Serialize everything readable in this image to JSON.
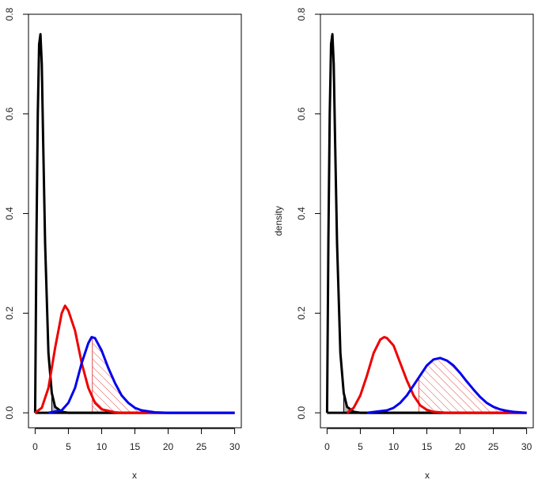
{
  "chart_data": [
    {
      "type": "line",
      "title": "",
      "xlabel": "x",
      "ylabel": "",
      "xlim": [
        -1,
        31
      ],
      "ylim": [
        -0.03,
        0.8
      ],
      "x_ticks": [
        0,
        5,
        10,
        15,
        20,
        25,
        30
      ],
      "x_tick_labels": [
        "0",
        "5",
        "10",
        "15",
        "20",
        "25",
        "30"
      ],
      "y_ticks": [
        0.0,
        0.2,
        0.4,
        0.6,
        0.8
      ],
      "y_tick_labels": [
        "0.0",
        "0.2",
        "0.4",
        "0.6",
        "0.8"
      ],
      "grid": false,
      "series": [
        {
          "color": "#000000",
          "values": [
            [
              0,
              0
            ],
            [
              0.2,
              0.35
            ],
            [
              0.4,
              0.6
            ],
            [
              0.6,
              0.74
            ],
            [
              0.8,
              0.76
            ],
            [
              1.0,
              0.7
            ],
            [
              1.2,
              0.55
            ],
            [
              1.5,
              0.34
            ],
            [
              2.0,
              0.12
            ],
            [
              2.5,
              0.04
            ],
            [
              3.0,
              0.012
            ],
            [
              4.0,
              0.002
            ],
            [
              5,
              0
            ],
            [
              30,
              0
            ]
          ]
        },
        {
          "color": "#ee0000",
          "values": [
            [
              0,
              0
            ],
            [
              1,
              0.01
            ],
            [
              2,
              0.05
            ],
            [
              3,
              0.13
            ],
            [
              4,
              0.2
            ],
            [
              4.5,
              0.215
            ],
            [
              5,
              0.205
            ],
            [
              6,
              0.165
            ],
            [
              7,
              0.1
            ],
            [
              8,
              0.05
            ],
            [
              9,
              0.02
            ],
            [
              10,
              0.007
            ],
            [
              12,
              0.001
            ],
            [
              13,
              0
            ],
            [
              30,
              0
            ]
          ]
        },
        {
          "color": "#0000ee",
          "values": [
            [
              2,
              0
            ],
            [
              4,
              0.005
            ],
            [
              5,
              0.02
            ],
            [
              6,
              0.05
            ],
            [
              7,
              0.1
            ],
            [
              8,
              0.14
            ],
            [
              8.5,
              0.152
            ],
            [
              9,
              0.15
            ],
            [
              10,
              0.125
            ],
            [
              11,
              0.09
            ],
            [
              12,
              0.06
            ],
            [
              13,
              0.035
            ],
            [
              14,
              0.02
            ],
            [
              15,
              0.01
            ],
            [
              16,
              0.005
            ],
            [
              18,
              0.001
            ],
            [
              20,
              0
            ],
            [
              30,
              0
            ]
          ]
        }
      ],
      "shaded": [
        {
          "style": "solid-gray",
          "x_from": 2.5,
          "x_to": 5,
          "curve_index": 0
        },
        {
          "style": "hatched-red",
          "x_from": 8.6,
          "x_to": 20,
          "curve_index": 2
        }
      ]
    },
    {
      "type": "line",
      "title": "",
      "xlabel": "x",
      "ylabel": "density",
      "xlim": [
        -1,
        31
      ],
      "ylim": [
        -0.03,
        0.8
      ],
      "x_ticks": [
        0,
        5,
        10,
        15,
        20,
        25,
        30
      ],
      "x_tick_labels": [
        "0",
        "5",
        "10",
        "15",
        "20",
        "25",
        "30"
      ],
      "y_ticks": [
        0.0,
        0.2,
        0.4,
        0.6,
        0.8
      ],
      "y_tick_labels": [
        "0.0",
        "0.2",
        "0.4",
        "0.6",
        "0.8"
      ],
      "grid": false,
      "series": [
        {
          "color": "#000000",
          "values": [
            [
              0,
              0
            ],
            [
              0.2,
              0.35
            ],
            [
              0.4,
              0.6
            ],
            [
              0.6,
              0.74
            ],
            [
              0.8,
              0.76
            ],
            [
              1.0,
              0.7
            ],
            [
              1.2,
              0.55
            ],
            [
              1.5,
              0.34
            ],
            [
              2.0,
              0.12
            ],
            [
              2.5,
              0.04
            ],
            [
              3.0,
              0.012
            ],
            [
              4.0,
              0.002
            ],
            [
              5,
              0
            ],
            [
              30,
              0
            ]
          ]
        },
        {
          "color": "#ee0000",
          "values": [
            [
              3,
              0
            ],
            [
              4,
              0.01
            ],
            [
              5,
              0.035
            ],
            [
              6,
              0.075
            ],
            [
              7,
              0.12
            ],
            [
              8,
              0.147
            ],
            [
              8.6,
              0.152
            ],
            [
              9,
              0.15
            ],
            [
              10,
              0.135
            ],
            [
              11,
              0.1
            ],
            [
              12,
              0.065
            ],
            [
              13,
              0.035
            ],
            [
              14,
              0.015
            ],
            [
              15,
              0.006
            ],
            [
              16,
              0.002
            ],
            [
              18,
              0
            ],
            [
              30,
              0
            ]
          ]
        },
        {
          "color": "#0000ee",
          "values": [
            [
              6,
              0
            ],
            [
              9,
              0.005
            ],
            [
              10,
              0.01
            ],
            [
              11,
              0.02
            ],
            [
              12,
              0.035
            ],
            [
              13,
              0.055
            ],
            [
              14,
              0.075
            ],
            [
              15,
              0.095
            ],
            [
              16,
              0.107
            ],
            [
              17,
              0.11
            ],
            [
              18,
              0.105
            ],
            [
              19,
              0.095
            ],
            [
              20,
              0.08
            ],
            [
              21,
              0.063
            ],
            [
              22,
              0.047
            ],
            [
              23,
              0.032
            ],
            [
              24,
              0.02
            ],
            [
              25,
              0.012
            ],
            [
              26,
              0.007
            ],
            [
              27,
              0.004
            ],
            [
              28,
              0.002
            ],
            [
              29,
              0.001
            ],
            [
              30,
              0
            ]
          ]
        }
      ],
      "shaded": [
        {
          "style": "solid-gray",
          "x_from": 2.5,
          "x_to": 5,
          "curve_index": 0
        },
        {
          "style": "hatched-red",
          "x_from": 13.8,
          "x_to": 30,
          "curve_index": 2
        }
      ]
    }
  ]
}
